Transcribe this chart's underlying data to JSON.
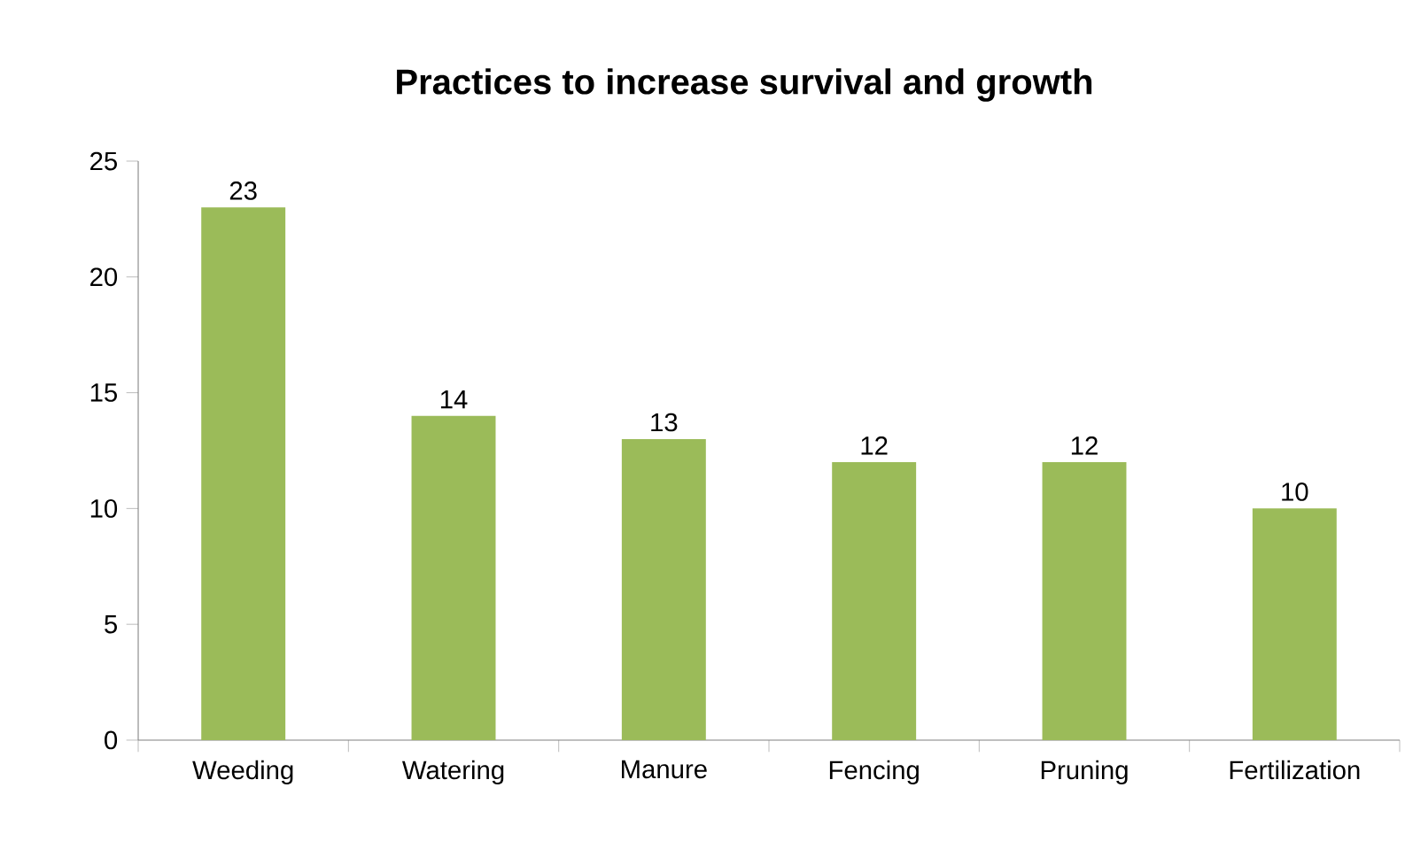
{
  "chart_data": {
    "type": "bar",
    "title": "Practices to increase survival and growth",
    "categories": [
      "Weeding",
      "Watering",
      "Manure",
      "Fencing",
      "Pruning",
      "Fertilization"
    ],
    "values": [
      23,
      14,
      13,
      12,
      12,
      10
    ],
    "color": "#9bbb59",
    "ylim": [
      0,
      25
    ],
    "yticks": [
      0,
      5,
      10,
      15,
      20,
      25
    ],
    "data_labels": true
  }
}
